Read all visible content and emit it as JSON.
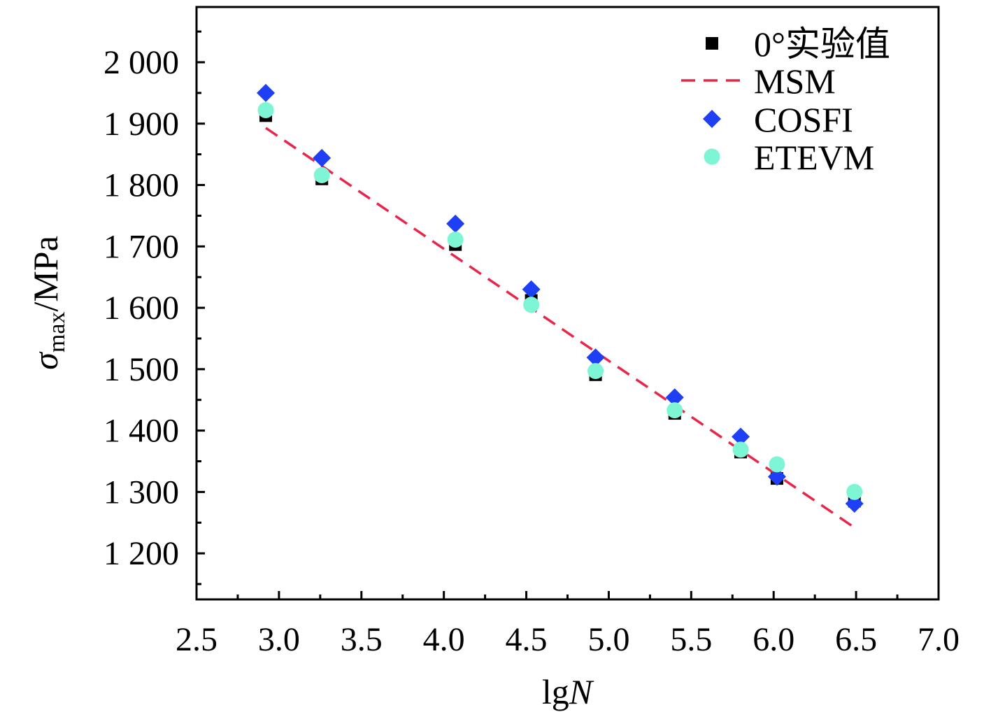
{
  "chart_data": {
    "type": "scatter",
    "title": "",
    "xlabel": {
      "prefix": "lg",
      "italic": "N"
    },
    "ylabel": {
      "symbol": "σ",
      "subscript": "max",
      "suffix": "/MPa"
    },
    "xlim": [
      2.5,
      7.0
    ],
    "ylim": [
      1125,
      2090
    ],
    "x_ticks": [
      2.5,
      3.0,
      3.5,
      4.0,
      4.5,
      5.0,
      5.5,
      6.0,
      6.5,
      7.0
    ],
    "x_tick_labels": [
      "2.5",
      "3.0",
      "3.5",
      "4.0",
      "4.5",
      "5.0",
      "5.5",
      "6.0",
      "6.5",
      "7.0"
    ],
    "y_ticks": [
      1200,
      1300,
      1400,
      1500,
      1600,
      1700,
      1800,
      1900,
      2000
    ],
    "y_tick_labels": [
      "1 200",
      "1 300",
      "1 400",
      "1 500",
      "1 600",
      "1 700",
      "1 800",
      "1 900",
      "2 000"
    ],
    "legend_position": "top-right",
    "series": [
      {
        "name": "0°实验值",
        "marker": "square",
        "color": "#000000",
        "x": [
          2.92,
          3.26,
          4.07,
          4.53,
          4.92,
          5.4,
          5.8,
          6.02,
          6.49
        ],
        "y": [
          1913,
          1810,
          1703,
          1612,
          1491,
          1428,
          1365,
          1322,
          1285
        ]
      },
      {
        "name": "MSM",
        "marker": "dashed-line",
        "color": "#e8264a",
        "x": [
          2.92,
          6.49
        ],
        "y": [
          1893,
          1242
        ]
      },
      {
        "name": "COSFI",
        "marker": "diamond",
        "color": "#1f3ff5",
        "x": [
          2.92,
          3.26,
          4.07,
          4.53,
          4.92,
          5.4,
          5.8,
          6.02,
          6.49
        ],
        "y": [
          1950,
          1844,
          1737,
          1630,
          1519,
          1454,
          1390,
          1325,
          1281
        ]
      },
      {
        "name": "ETEVM",
        "marker": "circle",
        "color": "#7ef5d4",
        "x": [
          2.92,
          3.26,
          4.07,
          4.53,
          4.92,
          5.4,
          5.8,
          6.02,
          6.49
        ],
        "y": [
          1922,
          1816,
          1711,
          1605,
          1497,
          1433,
          1369,
          1345,
          1300
        ]
      }
    ]
  }
}
